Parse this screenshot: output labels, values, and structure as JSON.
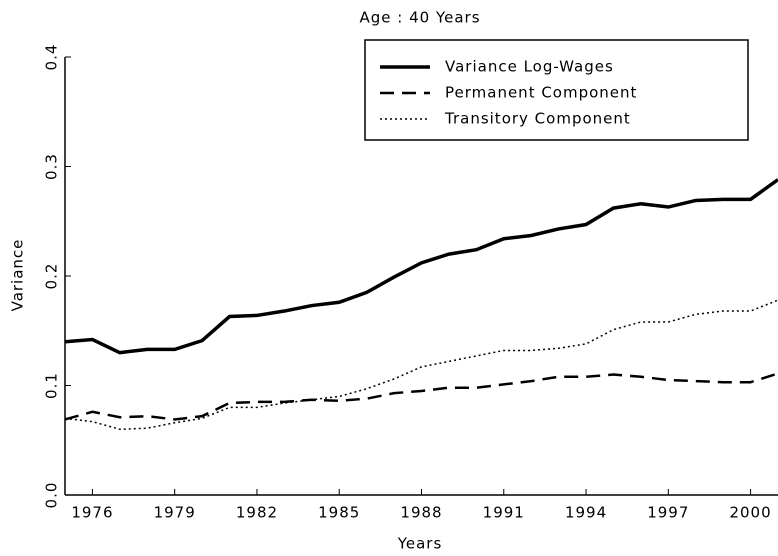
{
  "chart_data": {
    "type": "line",
    "title": "Age : 40 Years",
    "x_label": "Years",
    "y_label": "Variance",
    "x": [
      1975,
      1976,
      1977,
      1978,
      1979,
      1980,
      1981,
      1982,
      1983,
      1984,
      1985,
      1986,
      1987,
      1988,
      1989,
      1990,
      1991,
      1992,
      1993,
      1994,
      1995,
      1996,
      1997,
      1998,
      1999,
      2000,
      2001
    ],
    "series": [
      {
        "name": "Variance Log-Wages",
        "color": "#000000",
        "style": "solid",
        "width": 3.5,
        "values": [
          0.14,
          0.142,
          0.13,
          0.133,
          0.133,
          0.141,
          0.163,
          0.164,
          0.168,
          0.173,
          0.176,
          0.185,
          0.199,
          0.212,
          0.22,
          0.224,
          0.234,
          0.237,
          0.243,
          0.247,
          0.262,
          0.266,
          0.263,
          0.269,
          0.27,
          0.27,
          0.288
        ]
      },
      {
        "name": "Permanent Component",
        "color": "#000000",
        "style": "dashed",
        "width": 2.5,
        "values": [
          0.069,
          0.076,
          0.071,
          0.072,
          0.069,
          0.072,
          0.084,
          0.085,
          0.085,
          0.087,
          0.086,
          0.088,
          0.093,
          0.095,
          0.098,
          0.098,
          0.101,
          0.104,
          0.108,
          0.108,
          0.11,
          0.108,
          0.105,
          0.104,
          0.103,
          0.103,
          0.111
        ]
      },
      {
        "name": "Transitory Component",
        "color": "#000000",
        "style": "dotted",
        "width": 1.5,
        "values": [
          0.07,
          0.067,
          0.06,
          0.061,
          0.066,
          0.07,
          0.08,
          0.08,
          0.084,
          0.087,
          0.09,
          0.097,
          0.106,
          0.117,
          0.122,
          0.127,
          0.132,
          0.132,
          0.134,
          0.138,
          0.151,
          0.158,
          0.158,
          0.165,
          0.168,
          0.168,
          0.178
        ]
      }
    ],
    "xlim": [
      1975,
      2001
    ],
    "xticks": [
      1976,
      1979,
      1982,
      1985,
      1988,
      1991,
      1994,
      1997,
      2000
    ],
    "ylim": [
      0,
      0.4
    ],
    "yticks": [
      {
        "value": 0,
        "label": "0.0"
      },
      0.1,
      0.2,
      0.3,
      0.4
    ],
    "legend": "upper right",
    "grid": false
  }
}
